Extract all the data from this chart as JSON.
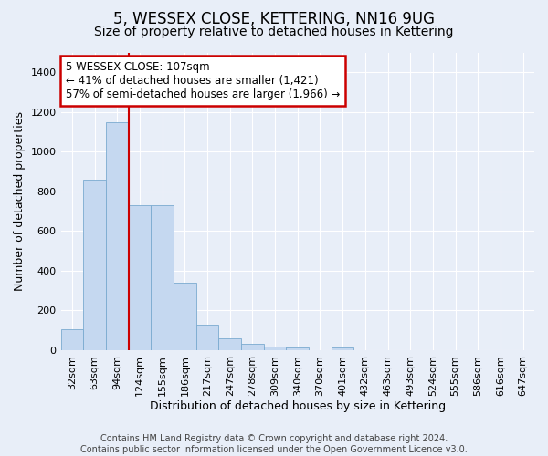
{
  "title": "5, WESSEX CLOSE, KETTERING, NN16 9UG",
  "subtitle": "Size of property relative to detached houses in Kettering",
  "xlabel": "Distribution of detached houses by size in Kettering",
  "ylabel": "Number of detached properties",
  "bar_color": "#c5d8f0",
  "bar_edge_color": "#7aaad0",
  "categories": [
    "32sqm",
    "63sqm",
    "94sqm",
    "124sqm",
    "155sqm",
    "186sqm",
    "217sqm",
    "247sqm",
    "278sqm",
    "309sqm",
    "340sqm",
    "370sqm",
    "401sqm",
    "432sqm",
    "463sqm",
    "493sqm",
    "524sqm",
    "555sqm",
    "586sqm",
    "616sqm",
    "647sqm"
  ],
  "values": [
    105,
    860,
    1150,
    730,
    730,
    340,
    130,
    60,
    30,
    20,
    15,
    0,
    15,
    0,
    0,
    0,
    0,
    0,
    0,
    0,
    0
  ],
  "ylim": [
    0,
    1500
  ],
  "yticks": [
    0,
    200,
    400,
    600,
    800,
    1000,
    1200,
    1400
  ],
  "vline_x_index": 2.5,
  "annotation_text": "5 WESSEX CLOSE: 107sqm\n← 41% of detached houses are smaller (1,421)\n57% of semi-detached houses are larger (1,966) →",
  "annotation_box_color": "#ffffff",
  "annotation_border_color": "#cc0000",
  "vline_color": "#cc0000",
  "footer_line1": "Contains HM Land Registry data © Crown copyright and database right 2024.",
  "footer_line2": "Contains public sector information licensed under the Open Government Licence v3.0.",
  "background_color": "#e8eef8",
  "grid_color": "#ffffff",
  "title_fontsize": 12,
  "subtitle_fontsize": 10,
  "axis_label_fontsize": 9,
  "tick_fontsize": 8,
  "annotation_fontsize": 8.5,
  "footer_fontsize": 7
}
